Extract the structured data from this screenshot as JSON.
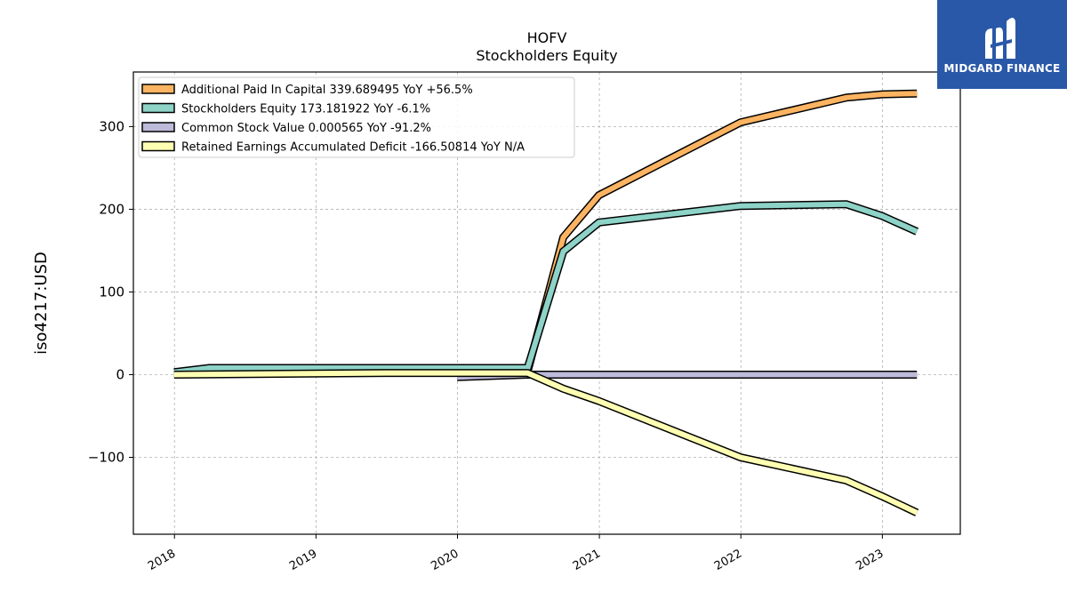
{
  "brand": {
    "name": "MIDGARD FINANCE",
    "color": "#2a58a8"
  },
  "chart_data": {
    "type": "line",
    "title": "HOFV",
    "subtitle": "Stockholders  Equity",
    "xlabel": "",
    "ylabel": "iso4217:USD",
    "xlim": [
      "2017-09-17",
      "2023-07-21"
    ],
    "ylim": [
      -193,
      366
    ],
    "yticks": [
      300,
      200,
      100,
      0,
      -100
    ],
    "ytick_labels": [
      "300",
      "200",
      "100",
      "0",
      "−100"
    ],
    "xticks": [
      "2018-01-01",
      "2019-01-01",
      "2020-01-01",
      "2021-01-01",
      "2022-01-01",
      "2023-01-01"
    ],
    "xtick_labels": [
      "2018",
      "2019",
      "2020",
      "2021",
      "2022",
      "2023"
    ],
    "grid": true,
    "legend_position": "top-left",
    "series": [
      {
        "name": "Additional Paid In Capital",
        "legend": "Additional Paid In Capital  339.689495 YoY +56.5%",
        "color": "#fdb462",
        "points": [
          [
            "2020-06-30",
            4
          ],
          [
            "2020-09-30",
            166
          ],
          [
            "2020-12-31",
            217
          ],
          [
            "2021-12-31",
            305
          ],
          [
            "2022-09-30",
            335
          ],
          [
            "2022-12-31",
            339
          ],
          [
            "2023-03-31",
            340
          ]
        ]
      },
      {
        "name": "Stockholders Equity",
        "legend": "Stockholders Equity  173.181922 YoY -6.1%",
        "color": "#8dd3c7",
        "points": [
          [
            "2017-12-31",
            3
          ],
          [
            "2018-03-31",
            8
          ],
          [
            "2019-12-31",
            8
          ],
          [
            "2020-06-30",
            8
          ],
          [
            "2020-09-30",
            149
          ],
          [
            "2020-12-31",
            184
          ],
          [
            "2021-12-31",
            204
          ],
          [
            "2022-09-30",
            206
          ],
          [
            "2022-12-31",
            192
          ],
          [
            "2023-03-31",
            173
          ]
        ]
      },
      {
        "name": "Common Stock Value",
        "legend": "Common Stock Value  0.000565 YoY -91.2%",
        "color": "#bebada",
        "points": [
          [
            "2019-12-31",
            -3
          ],
          [
            "2020-06-30",
            0
          ],
          [
            "2023-03-31",
            0
          ]
        ]
      },
      {
        "name": "Retained Earnings Accumulated Deficit",
        "legend": "Retained Earnings Accumulated Deficit  -166.50814 YoY N/A",
        "color": "#ffffb3",
        "points": [
          [
            "2017-12-31",
            0
          ],
          [
            "2019-06-30",
            2
          ],
          [
            "2020-06-30",
            2
          ],
          [
            "2020-09-30",
            -17
          ],
          [
            "2020-12-31",
            -32
          ],
          [
            "2021-12-31",
            -100
          ],
          [
            "2022-09-30",
            -128
          ],
          [
            "2022-12-31",
            -147
          ],
          [
            "2023-03-31",
            -167
          ]
        ]
      }
    ]
  }
}
